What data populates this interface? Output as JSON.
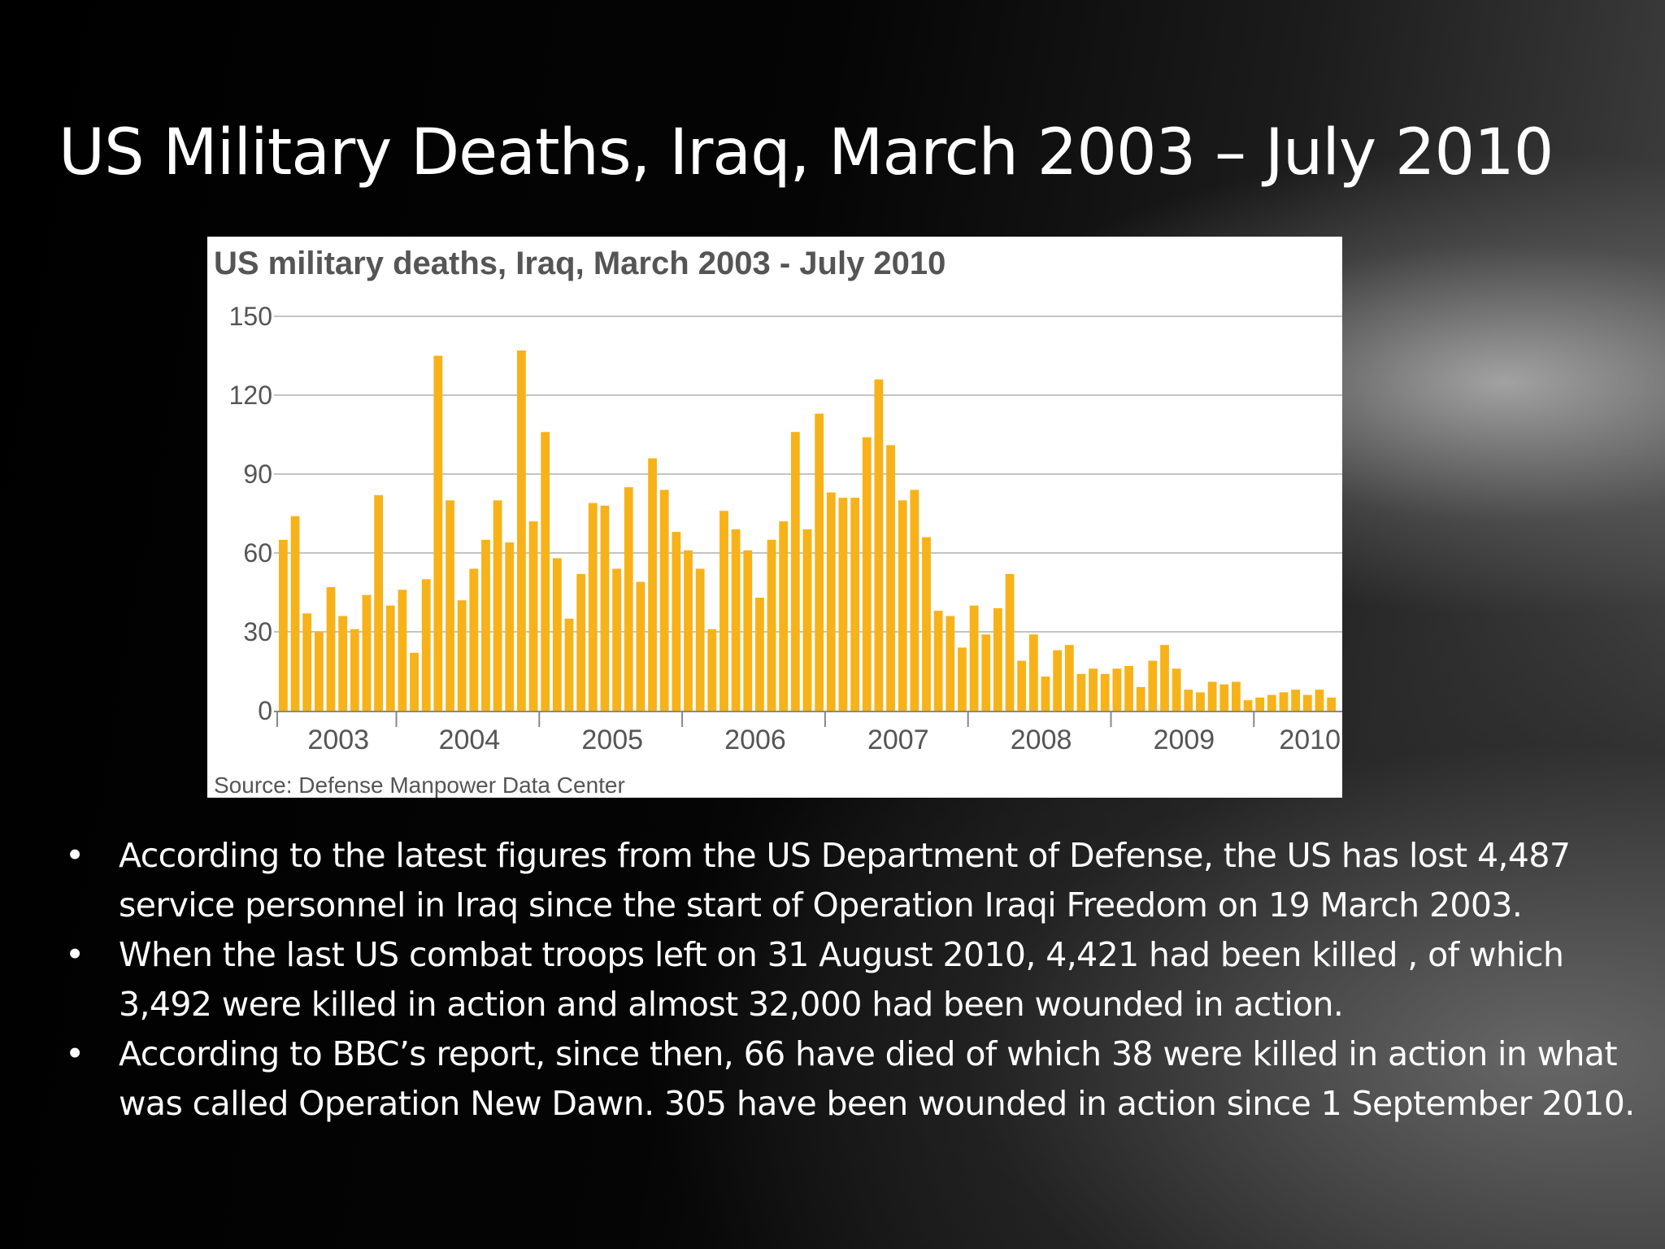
{
  "slide": {
    "title": "US Military Deaths, Iraq, March 2003 – July 2010",
    "bullets": [
      "According to the latest figures from the US Department of Defense, the US has lost 4,487 service personnel in Iraq since the start of Operation Iraqi Freedom on 19 March 2003.",
      "When the last US combat troops left on 31 August 2010,  4,421 had been killed , of which 3,492 were killed in action and almost 32,000 had been wounded in action.",
      "According to BBC’s report, since then, 66 have died of which 38 were killed in action in what was called Operation New Dawn. 305 have been wounded in action since 1 September 2010."
    ]
  },
  "chart_data": {
    "type": "bar",
    "title": "US military deaths, Iraq, March 2003 - July 2010",
    "source": "Source: Defense Manpower Data Center",
    "bar_color": "#f7b21a",
    "ylim": [
      0,
      150
    ],
    "yticks": [
      "150",
      "120",
      "90",
      "60",
      "30",
      "0"
    ],
    "year_labels": [
      "2003",
      "2004",
      "2005",
      "2006",
      "2007",
      "2008",
      "2009",
      "2010"
    ],
    "grid": true,
    "values": [
      65,
      74,
      37,
      30,
      47,
      36,
      31,
      44,
      82,
      40,
      46,
      22,
      50,
      135,
      80,
      42,
      54,
      65,
      80,
      64,
      137,
      72,
      106,
      58,
      35,
      52,
      79,
      78,
      54,
      85,
      49,
      96,
      84,
      68,
      61,
      54,
      31,
      76,
      69,
      61,
      43,
      65,
      72,
      106,
      69,
      113,
      83,
      81,
      81,
      104,
      126,
      101,
      80,
      84,
      66,
      38,
      36,
      24,
      40,
      29,
      39,
      52,
      19,
      29,
      13,
      23,
      25,
      14,
      16,
      14,
      16,
      17,
      9,
      19,
      25,
      16,
      8,
      7,
      11,
      10,
      11,
      4,
      5,
      6,
      7,
      8,
      6,
      8,
      5
    ]
  }
}
